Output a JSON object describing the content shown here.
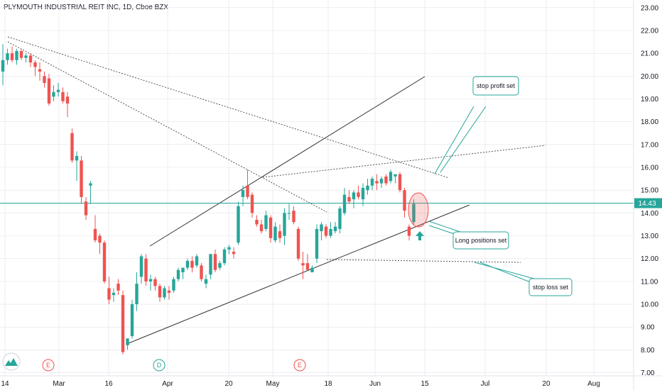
{
  "title": "PLYMOUTH INDUSTRIAL REIT INC, 1D, Cboe BZX",
  "current_price": "14.43",
  "colors": {
    "up": "#26a69a",
    "down": "#ef5350",
    "grid": "#e0e3eb",
    "price_line": "#26a69a",
    "annotation": "#26a69a"
  },
  "chart_data": {
    "type": "candlestick",
    "y_ticks": [
      "7.00",
      "8.00",
      "9.00",
      "10.00",
      "11.00",
      "12.00",
      "13.00",
      "14.00",
      "15.00",
      "16.00",
      "17.00",
      "18.00",
      "19.00",
      "20.00",
      "21.00",
      "22.00",
      "23.00"
    ],
    "ylim": [
      6.55,
      23.15
    ],
    "x_ticks": [
      "14",
      "Mar",
      "16",
      "Apr",
      "20",
      "May",
      "18",
      "Jun",
      "15",
      "Jul",
      "20",
      "Aug"
    ],
    "events": [
      "E",
      "D",
      "E"
    ],
    "candles": [
      [
        20.2,
        21.4,
        19.6,
        20.7
      ],
      [
        20.7,
        21.2,
        20.5,
        21.0
      ],
      [
        21.0,
        21.3,
        20.6,
        20.7
      ],
      [
        20.7,
        21.2,
        20.5,
        21.1
      ],
      [
        21.1,
        21.2,
        20.7,
        20.8
      ],
      [
        20.8,
        21.0,
        20.6,
        20.9
      ],
      [
        20.9,
        21.0,
        20.4,
        20.6
      ],
      [
        20.6,
        20.7,
        20.0,
        20.4
      ],
      [
        20.3,
        20.6,
        19.8,
        20.2
      ],
      [
        20.0,
        20.2,
        19.5,
        19.7
      ],
      [
        19.9,
        20.1,
        18.7,
        18.8
      ],
      [
        19.1,
        19.6,
        18.9,
        19.3
      ],
      [
        19.3,
        19.7,
        19.1,
        19.4
      ],
      [
        19.3,
        19.5,
        18.8,
        18.9
      ],
      [
        19.1,
        19.3,
        18.2,
        18.8
      ],
      [
        17.5,
        17.7,
        16.2,
        16.3
      ],
      [
        16.3,
        16.7,
        15.4,
        16.5
      ],
      [
        16.3,
        16.5,
        14.4,
        14.7
      ],
      [
        14.5,
        14.7,
        13.7,
        13.9
      ],
      [
        15.2,
        15.4,
        14.4,
        15.3
      ],
      [
        13.3,
        13.9,
        12.7,
        12.8
      ],
      [
        13.0,
        13.1,
        12.2,
        12.7
      ],
      [
        12.7,
        12.8,
        10.9,
        11.0
      ],
      [
        10.7,
        11.2,
        10.0,
        10.2
      ],
      [
        10.4,
        10.7,
        10.1,
        10.5
      ],
      [
        10.9,
        11.1,
        10.4,
        10.6
      ],
      [
        10.4,
        10.6,
        7.8,
        7.9
      ],
      [
        8.2,
        8.5,
        8.0,
        8.5
      ],
      [
        8.6,
        10.2,
        8.5,
        10.0
      ],
      [
        10.0,
        11.4,
        9.7,
        10.9
      ],
      [
        11.2,
        12.2,
        10.9,
        12.1
      ],
      [
        12.0,
        12.2,
        10.8,
        11.0
      ],
      [
        11.0,
        11.3,
        10.6,
        11.1
      ],
      [
        11.1,
        11.2,
        10.6,
        10.8
      ],
      [
        10.8,
        10.9,
        10.1,
        10.3
      ],
      [
        10.3,
        10.8,
        10.2,
        10.7
      ],
      [
        10.6,
        10.8,
        10.2,
        10.5
      ],
      [
        10.6,
        11.2,
        10.5,
        11.1
      ],
      [
        11.1,
        11.6,
        11.0,
        11.5
      ],
      [
        11.4,
        11.6,
        11.1,
        11.6
      ],
      [
        11.6,
        12.0,
        11.5,
        11.9
      ],
      [
        11.9,
        12.1,
        11.4,
        11.6
      ],
      [
        11.7,
        12.2,
        11.6,
        12.1
      ],
      [
        11.7,
        11.8,
        11.0,
        11.1
      ],
      [
        10.9,
        11.3,
        10.7,
        11.1
      ],
      [
        11.3,
        12.2,
        11.1,
        12.2
      ],
      [
        12.2,
        12.4,
        11.4,
        11.5
      ],
      [
        11.6,
        11.9,
        11.5,
        11.8
      ],
      [
        11.8,
        12.5,
        11.7,
        12.4
      ],
      [
        12.4,
        12.6,
        12.2,
        12.5
      ],
      [
        12.3,
        12.5,
        12.0,
        12.2
      ],
      [
        12.7,
        14.5,
        12.6,
        14.3
      ],
      [
        14.7,
        15.2,
        14.3,
        15.0
      ],
      [
        15.2,
        15.9,
        14.6,
        14.7
      ],
      [
        14.8,
        14.9,
        13.8,
        14.0
      ],
      [
        13.7,
        13.9,
        13.4,
        13.5
      ],
      [
        13.5,
        13.7,
        13.1,
        13.2
      ],
      [
        13.3,
        14.1,
        13.2,
        13.9
      ],
      [
        13.8,
        13.9,
        12.7,
        12.9
      ],
      [
        12.8,
        13.6,
        12.7,
        13.4
      ],
      [
        13.2,
        13.5,
        12.7,
        12.9
      ],
      [
        13.0,
        14.2,
        12.6,
        14.0
      ],
      [
        14.0,
        14.4,
        13.7,
        14.0
      ],
      [
        14.1,
        14.3,
        13.5,
        13.6
      ],
      [
        13.3,
        13.4,
        11.9,
        12.0
      ],
      [
        11.8,
        12.3,
        11.1,
        11.7
      ],
      [
        11.8,
        12.2,
        11.6,
        11.5
      ],
      [
        11.4,
        11.7,
        11.5,
        11.6
      ],
      [
        12.0,
        13.5,
        11.8,
        13.3
      ],
      [
        13.2,
        13.6,
        12.8,
        13.5
      ],
      [
        13.4,
        13.5,
        12.9,
        13.0
      ],
      [
        13.0,
        13.6,
        12.9,
        13.3
      ],
      [
        13.2,
        13.6,
        13.1,
        13.4
      ],
      [
        13.3,
        14.3,
        13.1,
        14.2
      ],
      [
        14.0,
        15.1,
        13.9,
        14.8
      ],
      [
        14.7,
        15.0,
        14.4,
        14.5
      ],
      [
        14.6,
        15.0,
        14.2,
        14.9
      ],
      [
        14.9,
        15.2,
        14.6,
        14.7
      ],
      [
        14.6,
        15.3,
        14.3,
        15.1
      ],
      [
        15.0,
        15.5,
        14.8,
        15.2
      ],
      [
        15.2,
        15.6,
        15.0,
        15.5
      ],
      [
        15.4,
        15.7,
        15.0,
        15.3
      ],
      [
        15.3,
        15.6,
        15.1,
        15.5
      ],
      [
        15.6,
        15.7,
        15.2,
        15.3
      ],
      [
        15.4,
        15.9,
        15.3,
        15.8
      ],
      [
        15.6,
        15.7,
        15.3,
        15.7
      ],
      [
        15.7,
        15.8,
        14.9,
        15.0
      ],
      [
        15.0,
        15.1,
        13.8,
        14.1
      ],
      [
        13.4,
        13.5,
        12.8,
        13.0
      ],
      [
        13.6,
        14.6,
        13.5,
        14.4
      ]
    ]
  },
  "annotations": {
    "stop_profit": "stop profit set",
    "long_positions": "Long positions set",
    "stop_loss": "stop loss set"
  }
}
